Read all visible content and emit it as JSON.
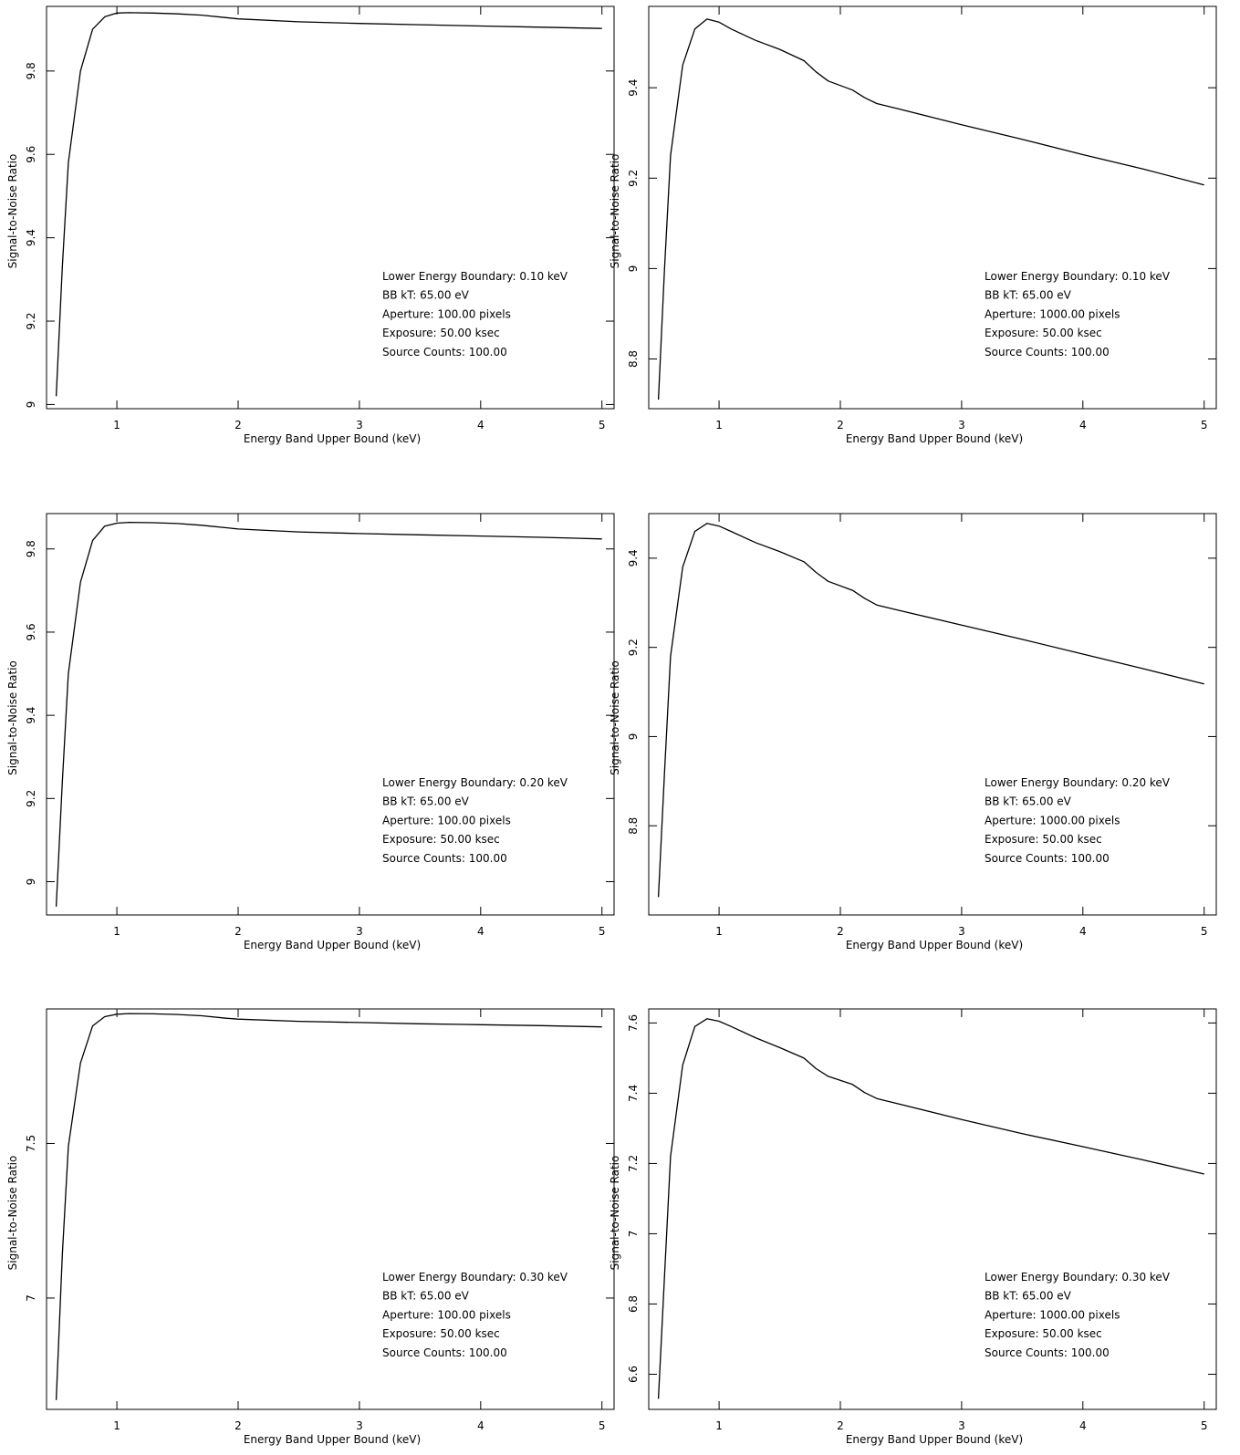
{
  "chart_data": [
    {
      "type": "line",
      "xlabel": "Energy Band Upper Bound (keV)",
      "ylabel": "Signal-to-Noise Ratio",
      "xlim": [
        0.42,
        5.1
      ],
      "ylim": [
        8.99,
        9.955
      ],
      "xticks": [
        "1",
        "2",
        "3",
        "4",
        "5"
      ],
      "yticks": [
        "9",
        "9.2",
        "9.4",
        "9.6",
        "9.8"
      ],
      "grid": false,
      "annotation_placement": "lower-right",
      "annotation": [
        "Lower Energy Boundary: 0.10 keV",
        "BB kT: 65.00 eV",
        "Aperture: 100.00 pixels",
        "Exposure: 50.00 ksec",
        "Source Counts: 100.00"
      ],
      "series": [
        {
          "x": [
            0.5,
            0.55,
            0.6,
            0.7,
            0.8,
            0.9,
            1.0,
            1.1,
            1.3,
            1.5,
            1.7,
            1.9,
            2.0,
            2.5,
            3.0,
            3.5,
            4.0,
            4.5,
            5.0
          ],
          "y": [
            9.02,
            9.33,
            9.58,
            9.8,
            9.9,
            9.93,
            9.939,
            9.94,
            9.939,
            9.937,
            9.934,
            9.928,
            9.925,
            9.918,
            9.914,
            9.911,
            9.908,
            9.905,
            9.902
          ]
        }
      ]
    },
    {
      "type": "line",
      "xlabel": "Energy Band Upper Bound (keV)",
      "ylabel": "Signal-to-Noise Ratio",
      "xlim": [
        0.42,
        5.1
      ],
      "ylim": [
        8.69,
        9.58
      ],
      "xticks": [
        "1",
        "2",
        "3",
        "4",
        "5"
      ],
      "yticks": [
        "8.8",
        "9",
        "9.2",
        "9.4"
      ],
      "grid": false,
      "annotation_placement": "lower-right",
      "annotation": [
        "Lower Energy Boundary: 0.10 keV",
        "BB kT: 65.00 eV",
        "Aperture: 1000.00 pixels",
        "Exposure: 50.00 ksec",
        "Source Counts: 100.00"
      ],
      "series": [
        {
          "x": [
            0.5,
            0.55,
            0.6,
            0.7,
            0.8,
            0.9,
            1.0,
            1.1,
            1.3,
            1.5,
            1.7,
            1.8,
            1.9,
            2.1,
            2.2,
            2.3,
            2.5,
            3.0,
            3.5,
            4.0,
            4.5,
            5.0
          ],
          "y": [
            8.71,
            9.0,
            9.25,
            9.45,
            9.53,
            9.552,
            9.545,
            9.53,
            9.505,
            9.485,
            9.46,
            9.435,
            9.415,
            9.395,
            9.378,
            9.365,
            9.352,
            9.318,
            9.286,
            9.252,
            9.22,
            9.185
          ]
        }
      ]
    },
    {
      "type": "line",
      "xlabel": "Energy Band Upper Bound (keV)",
      "ylabel": "Signal-to-Noise Ratio",
      "xlim": [
        0.42,
        5.1
      ],
      "ylim": [
        8.92,
        9.885
      ],
      "xticks": [
        "1",
        "2",
        "3",
        "4",
        "5"
      ],
      "yticks": [
        "9",
        "9.2",
        "9.4",
        "9.6",
        "9.8"
      ],
      "grid": false,
      "annotation_placement": "lower-right",
      "annotation": [
        "Lower Energy Boundary: 0.20 keV",
        "BB kT: 65.00 eV",
        "Aperture: 100.00 pixels",
        "Exposure: 50.00 ksec",
        "Source Counts: 100.00"
      ],
      "series": [
        {
          "x": [
            0.5,
            0.55,
            0.6,
            0.7,
            0.8,
            0.9,
            1.0,
            1.1,
            1.3,
            1.5,
            1.7,
            1.9,
            2.0,
            2.5,
            3.0,
            3.5,
            4.0,
            4.5,
            5.0
          ],
          "y": [
            8.94,
            9.24,
            9.5,
            9.72,
            9.82,
            9.855,
            9.862,
            9.864,
            9.863,
            9.861,
            9.857,
            9.851,
            9.848,
            9.841,
            9.837,
            9.834,
            9.831,
            9.828,
            9.824
          ]
        }
      ]
    },
    {
      "type": "line",
      "xlabel": "Energy Band Upper Bound (keV)",
      "ylabel": "Signal-to-Noise Ratio",
      "xlim": [
        0.42,
        5.1
      ],
      "ylim": [
        8.6,
        9.5
      ],
      "xticks": [
        "1",
        "2",
        "3",
        "4",
        "5"
      ],
      "yticks": [
        "8.8",
        "9",
        "9.2",
        "9.4"
      ],
      "grid": false,
      "annotation_placement": "lower-right",
      "annotation": [
        "Lower Energy Boundary: 0.20 keV",
        "BB kT: 65.00 eV",
        "Aperture: 1000.00 pixels",
        "Exposure: 50.00 ksec",
        "Source Counts: 100.00"
      ],
      "series": [
        {
          "x": [
            0.5,
            0.55,
            0.6,
            0.7,
            0.8,
            0.9,
            1.0,
            1.1,
            1.3,
            1.5,
            1.7,
            1.8,
            1.9,
            2.1,
            2.2,
            2.3,
            2.5,
            3.0,
            3.5,
            4.0,
            4.5,
            5.0
          ],
          "y": [
            8.64,
            8.92,
            9.18,
            9.38,
            9.46,
            9.478,
            9.472,
            9.46,
            9.435,
            9.415,
            9.392,
            9.368,
            9.348,
            9.328,
            9.31,
            9.295,
            9.282,
            9.25,
            9.218,
            9.185,
            9.152,
            9.118
          ]
        }
      ]
    },
    {
      "type": "line",
      "xlabel": "Energy Band Upper Bound (keV)",
      "ylabel": "Signal-to-Noise Ratio",
      "xlim": [
        0.42,
        5.1
      ],
      "ylim": [
        6.64,
        7.935
      ],
      "xticks": [
        "1",
        "2",
        "3",
        "4",
        "5"
      ],
      "yticks": [
        "7",
        "7.5"
      ],
      "grid": false,
      "annotation_placement": "lower-right",
      "annotation": [
        "Lower Energy Boundary: 0.30 keV",
        "BB kT: 65.00 eV",
        "Aperture: 100.00 pixels",
        "Exposure: 50.00 ksec",
        "Source Counts: 100.00"
      ],
      "series": [
        {
          "x": [
            0.5,
            0.55,
            0.6,
            0.7,
            0.8,
            0.9,
            1.0,
            1.1,
            1.3,
            1.5,
            1.7,
            1.9,
            2.0,
            2.5,
            3.0,
            3.5,
            4.0,
            4.5,
            5.0
          ],
          "y": [
            6.67,
            7.14,
            7.49,
            7.76,
            7.88,
            7.91,
            7.918,
            7.92,
            7.919,
            7.917,
            7.913,
            7.905,
            7.902,
            7.895,
            7.891,
            7.887,
            7.884,
            7.881,
            7.877
          ]
        }
      ]
    },
    {
      "type": "line",
      "xlabel": "Energy Band Upper Bound (keV)",
      "ylabel": "Signal-to-Noise Ratio",
      "xlim": [
        0.42,
        5.1
      ],
      "ylim": [
        6.5,
        7.64
      ],
      "xticks": [
        "1",
        "2",
        "3",
        "4",
        "5"
      ],
      "yticks": [
        "6.6",
        "6.8",
        "7",
        "7.2",
        "7.4",
        "7.6"
      ],
      "grid": false,
      "annotation_placement": "lower-right",
      "annotation": [
        "Lower Energy Boundary: 0.30 keV",
        "BB kT: 65.00 eV",
        "Aperture: 1000.00 pixels",
        "Exposure: 50.00 ksec",
        "Source Counts: 100.00"
      ],
      "series": [
        {
          "x": [
            0.5,
            0.55,
            0.6,
            0.7,
            0.8,
            0.9,
            1.0,
            1.1,
            1.3,
            1.5,
            1.7,
            1.8,
            1.9,
            2.1,
            2.2,
            2.3,
            2.5,
            3.0,
            3.5,
            4.0,
            4.5,
            5.0
          ],
          "y": [
            6.53,
            6.88,
            7.22,
            7.48,
            7.59,
            7.612,
            7.605,
            7.59,
            7.558,
            7.53,
            7.5,
            7.47,
            7.448,
            7.425,
            7.402,
            7.385,
            7.368,
            7.325,
            7.285,
            7.248,
            7.21,
            7.17
          ]
        }
      ]
    }
  ]
}
